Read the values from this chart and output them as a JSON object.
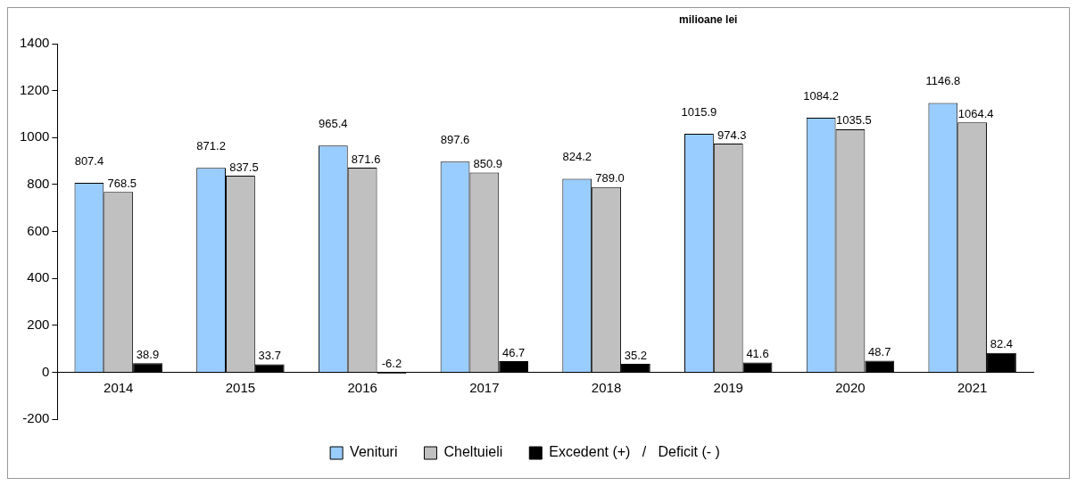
{
  "chart_data": {
    "type": "bar",
    "annotations": [
      "milioane lei"
    ],
    "categories": [
      "2014",
      "2015",
      "2016",
      "2017",
      "2018",
      "2019",
      "2020",
      "2021"
    ],
    "series": [
      {
        "name": "Venituri",
        "color": "#99ccff",
        "values": [
          807.4,
          871.2,
          965.4,
          897.6,
          824.2,
          1015.9,
          1084.2,
          1146.8
        ],
        "value_labels": [
          "807.4",
          "871.2",
          "965.4",
          "897.6",
          "824.2",
          "1015.9",
          "1084.2",
          "1146.8"
        ]
      },
      {
        "name": "Cheltuieli",
        "color": "#c0c0c0",
        "values": [
          768.5,
          837.5,
          871.6,
          850.9,
          789.0,
          974.3,
          1035.5,
          1064.4
        ],
        "value_labels": [
          "768.5",
          "837.5",
          "871.6",
          "850.9",
          "789.0",
          "974.3",
          "1035.5",
          "1064.4"
        ]
      },
      {
        "name": "Excedent (+)   /   Deficit (- )",
        "color": "#000000",
        "values": [
          38.9,
          33.7,
          -6.2,
          46.7,
          35.2,
          41.6,
          48.7,
          82.4
        ],
        "value_labels": [
          "38.9",
          "33.7",
          "-6.2",
          "46.7",
          "35.2",
          "41.6",
          "48.7",
          "82.4"
        ]
      }
    ],
    "ylim": [
      -200,
      1400
    ],
    "yticks": [
      -200,
      0,
      200,
      400,
      600,
      800,
      1000,
      1200,
      1400
    ],
    "grid": false,
    "legend": "bottom"
  }
}
